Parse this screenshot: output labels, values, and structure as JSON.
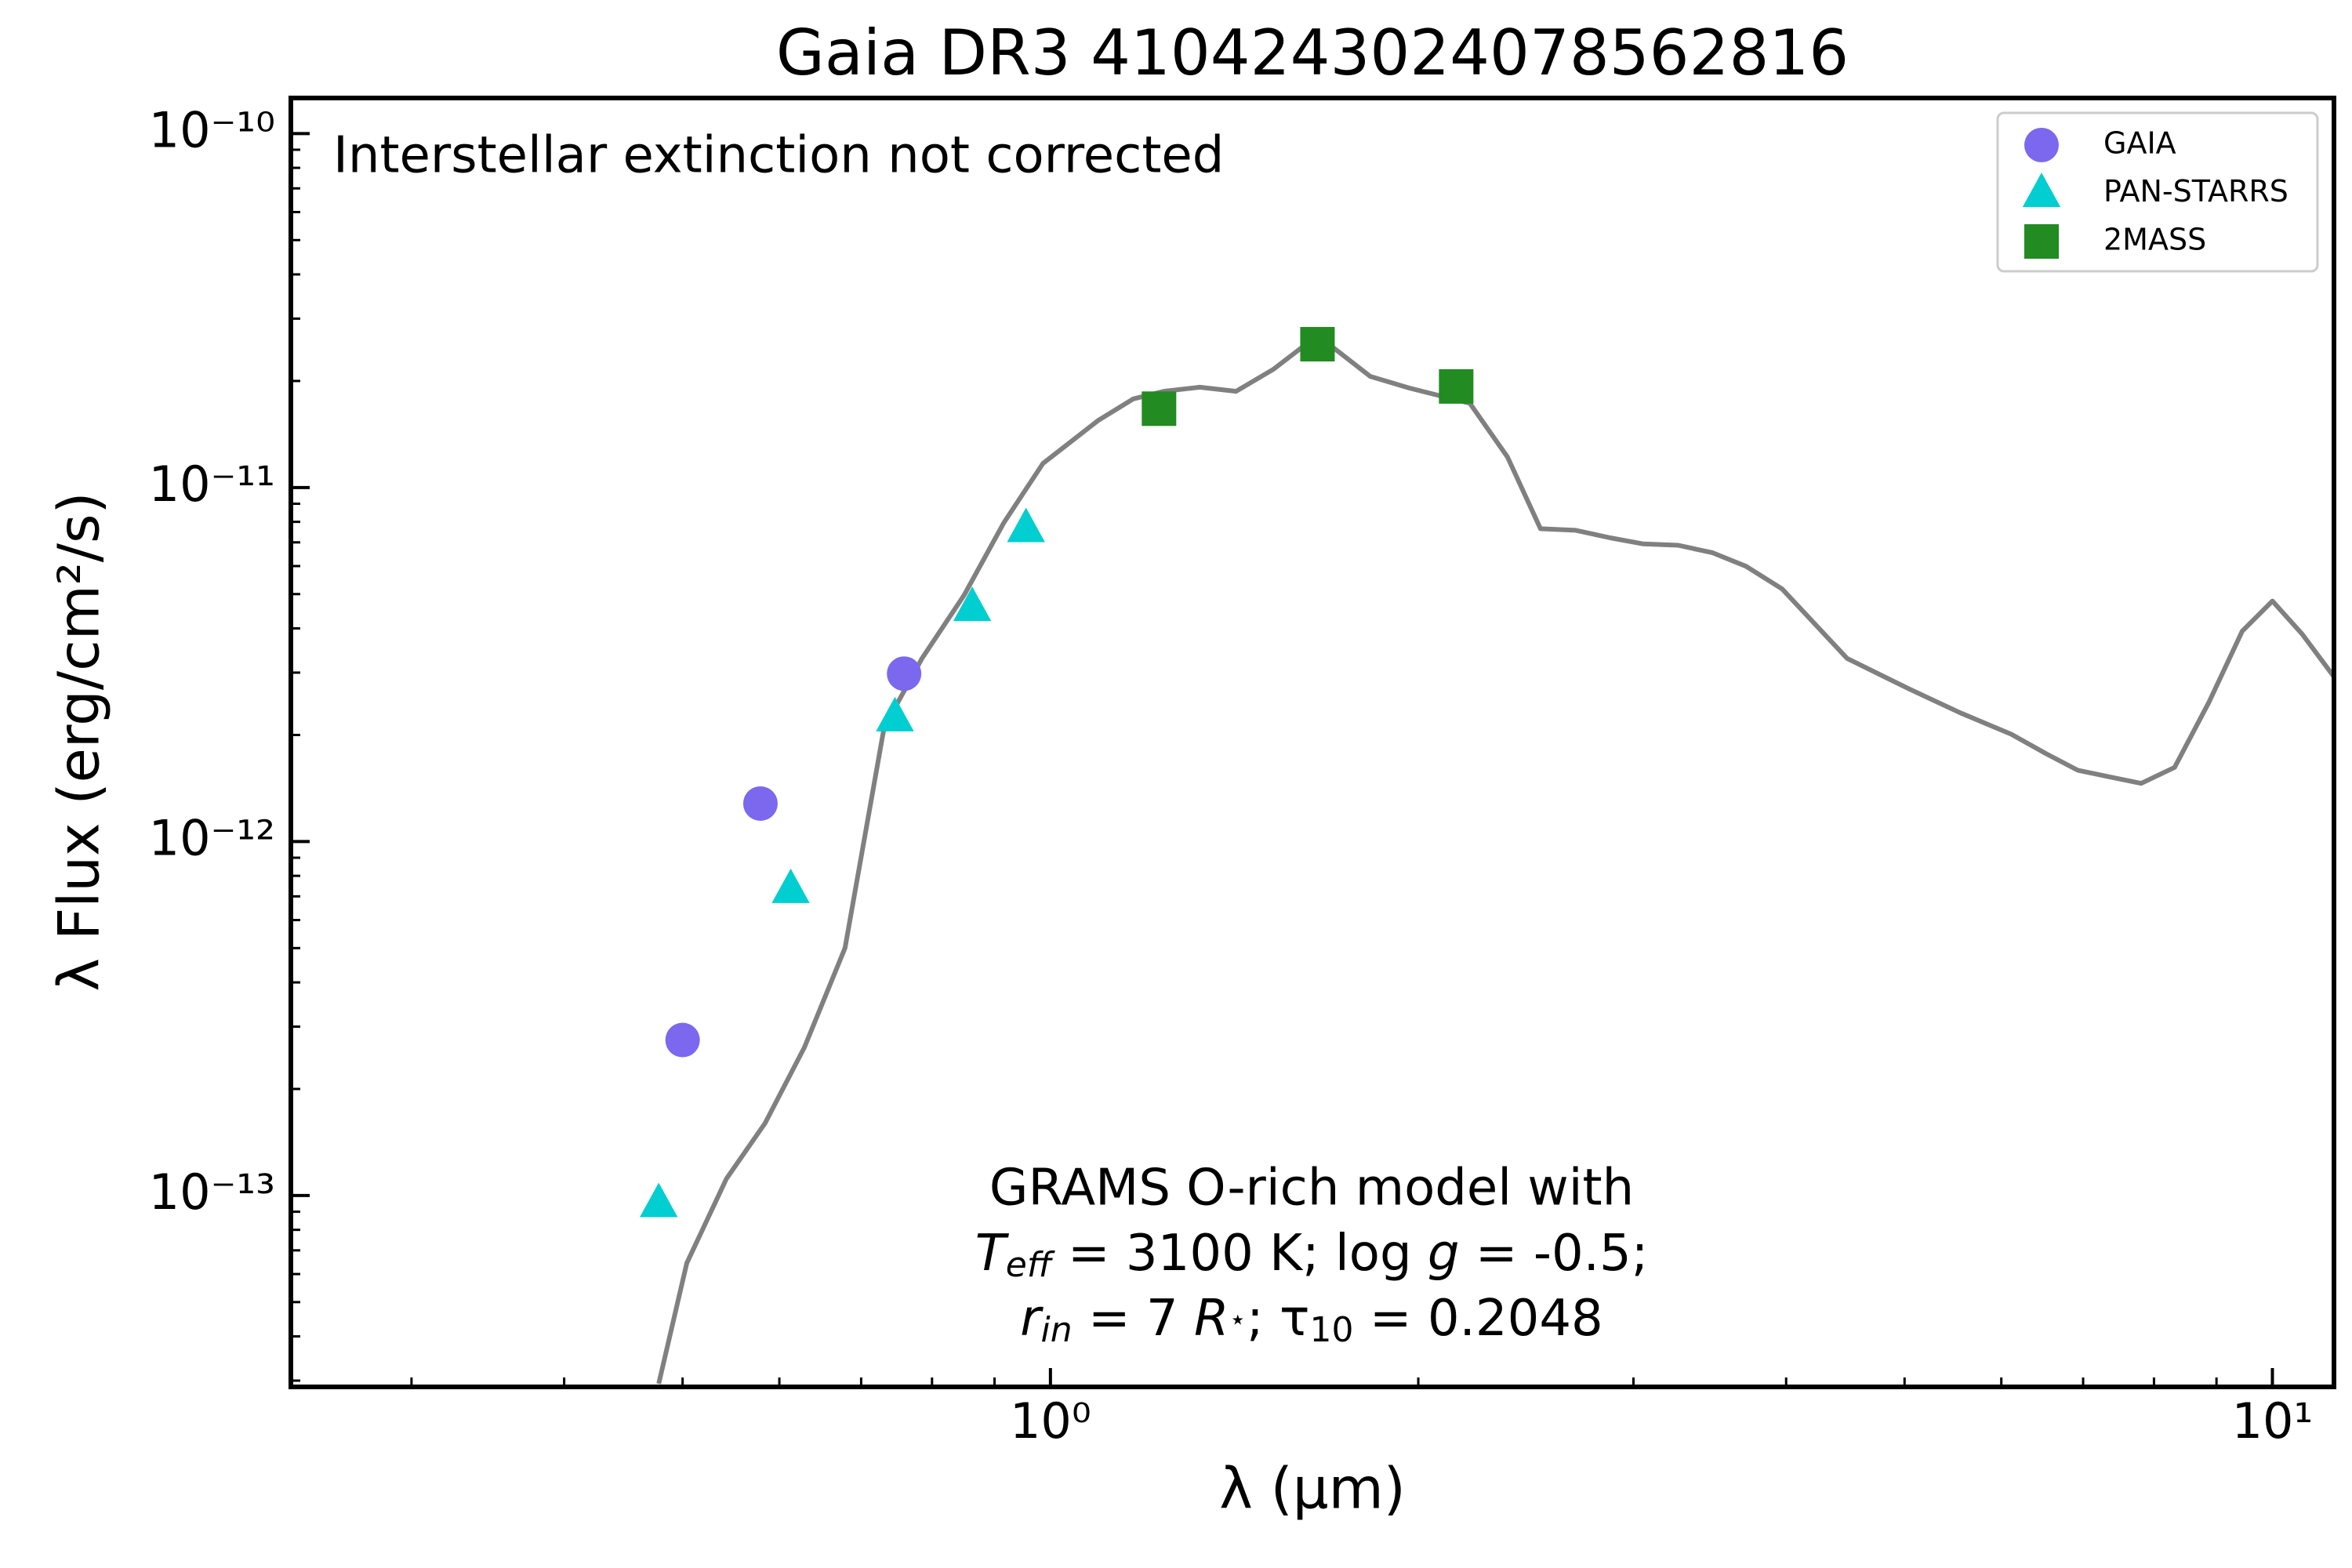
{
  "chart_data": {
    "type": "scatter",
    "title": "Gaia DR3 4104243024078562816",
    "xlabel": "λ (μm)",
    "ylabel": "λ Flux (erg/cm²/s)",
    "xscale": "log",
    "yscale": "log",
    "xlim": [
      0.239,
      11.23
    ],
    "ylim": [
      2.88e-14,
      1.26e-10
    ],
    "xticks": [
      {
        "value": 1,
        "label": "10⁰"
      },
      {
        "value": 10,
        "label": "10¹"
      }
    ],
    "xminor_ticks": [
      0.3,
      0.4,
      0.5,
      0.6,
      0.7,
      0.8,
      0.9,
      2,
      3,
      4,
      5,
      6,
      7,
      8,
      9
    ],
    "yticks": [
      {
        "value": 1e-13,
        "label": "10⁻¹³"
      },
      {
        "value": 1e-12,
        "label": "10⁻¹²"
      },
      {
        "value": 1e-11,
        "label": "10⁻¹¹"
      },
      {
        "value": 1e-10,
        "label": "10⁻¹⁰"
      }
    ],
    "yminor_ticks": [
      3e-14,
      4e-14,
      5e-14,
      6e-14,
      7e-14,
      8e-14,
      9e-14,
      2e-13,
      3e-13,
      4e-13,
      5e-13,
      6e-13,
      7e-13,
      8e-13,
      9e-13,
      2e-12,
      3e-12,
      4e-12,
      5e-12,
      6e-12,
      7e-12,
      8e-12,
      9e-12,
      2e-11,
      3e-11,
      4e-11,
      5e-11,
      6e-11,
      7e-11,
      8e-11,
      9e-11
    ],
    "legend": "upper right",
    "series": [
      {
        "name": "GAIA",
        "marker": "circle",
        "color": "#7b68ee",
        "x": [
          0.5,
          0.579,
          0.759
        ],
        "y": [
          2.75e-13,
          1.28e-12,
          2.98e-12
        ]
      },
      {
        "name": "PAN-STARRS",
        "marker": "triangle",
        "color": "#00ced1",
        "x": [
          0.478,
          0.613,
          0.746,
          0.863,
          0.955
        ],
        "y": [
          9.5e-14,
          7.33e-13,
          2.24e-12,
          4.59e-12,
          7.67e-12
        ]
      },
      {
        "name": "2MASS",
        "marker": "square",
        "color": "#228b22",
        "x": [
          1.227,
          1.654,
          2.148
        ],
        "y": [
          1.67e-11,
          2.54e-11,
          1.93e-11
        ]
      }
    ],
    "model": {
      "color": "#808080",
      "x": [
        0.478,
        0.504,
        0.543,
        0.584,
        0.629,
        0.679,
        0.731,
        0.785,
        0.85,
        0.916,
        0.986,
        1.095,
        1.169,
        1.238,
        1.325,
        1.419,
        1.523,
        1.654,
        1.827,
        1.967,
        2.204,
        2.366,
        2.518,
        2.69,
        2.871,
        3.057,
        3.264,
        3.483,
        3.709,
        3.97,
        4.487,
        5.041,
        5.553,
        6.114,
        6.529,
        6.929,
        7.377,
        7.809,
        8.316,
        8.875,
        9.447,
        10.0,
        10.58,
        11.23
      ],
      "y": [
        2.94e-14,
        6.44e-14,
        1.115e-13,
        1.6e-13,
        2.62e-13,
        5e-13,
        2.1e-12,
        3.29e-12,
        4.97e-12,
        7.96e-12,
        1.17e-11,
        1.55e-11,
        1.78e-11,
        1.87e-11,
        1.92e-11,
        1.87e-11,
        2.16e-11,
        2.69e-11,
        2.06e-11,
        1.91e-11,
        1.73e-11,
        1.22e-11,
        7.65e-12,
        7.57e-12,
        7.21e-12,
        6.93e-12,
        6.87e-12,
        6.54e-12,
        5.99e-12,
        5.17e-12,
        3.29e-12,
        2.7e-12,
        2.31e-12,
        2.01e-12,
        1.77e-12,
        1.59e-12,
        1.52e-12,
        1.46e-12,
        1.62e-12,
        2.48e-12,
        3.93e-12,
        4.78e-12,
        3.85e-12,
        2.92e-12
      ]
    },
    "annotations": {
      "extinction": "Interstellar extinction not corrected",
      "model_line1": "GRAMS O-rich model with",
      "model_line2": [
        "T",
        "eff",
        " = 3100 K; log ",
        "g",
        " = -0.5;"
      ],
      "model_line3": [
        "r",
        "in",
        " = 7 ",
        "R",
        "⋆",
        "; τ",
        "10",
        " = 0.2048"
      ]
    }
  }
}
